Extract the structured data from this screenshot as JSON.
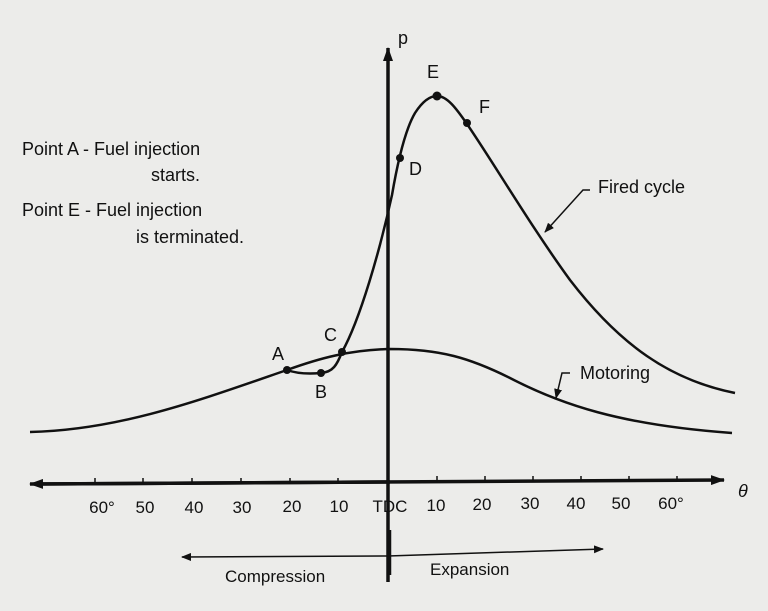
{
  "axes": {
    "y_label": "p",
    "x_label": "θ",
    "x_ticks": [
      "60°",
      "50",
      "40",
      "30",
      "20",
      "10",
      "TDC",
      "10",
      "20",
      "30",
      "40",
      "50",
      "60°"
    ]
  },
  "strokes": {
    "compression": "Compression",
    "expansion": "Expansion"
  },
  "notes": {
    "line1": "Point A - Fuel injection",
    "line2": "starts.",
    "line3": "Point E - Fuel injection",
    "line4": "is terminated."
  },
  "curves": {
    "fired": "Fired cycle",
    "motoring": "Motoring"
  },
  "points": [
    "A",
    "B",
    "C",
    "D",
    "E",
    "F"
  ],
  "colors": {
    "background": "#ececea",
    "ink": "#111111"
  }
}
